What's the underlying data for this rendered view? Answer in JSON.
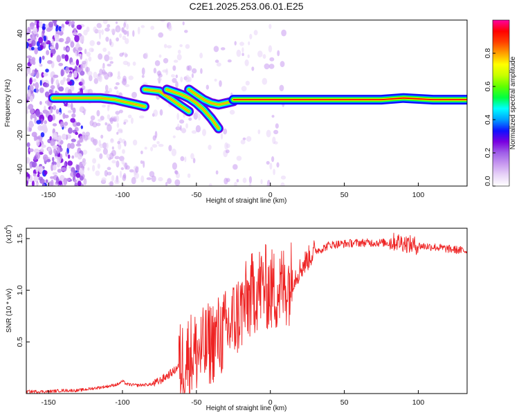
{
  "title": "C2E1.2025.253.06.01.E25",
  "colors": {
    "signal_line": "#ee2222",
    "axis": "#000000"
  },
  "chart_data": [
    {
      "type": "heatmap",
      "xlabel": "Height of straight line (km)",
      "ylabel": "Frequency (Hz)",
      "xlim": [
        -165,
        133
      ],
      "ylim": [
        -50,
        48
      ],
      "xticks": [
        -150,
        -100,
        -50,
        0,
        50,
        100
      ],
      "yticks": [
        -40,
        -20,
        0,
        20,
        40
      ],
      "colorbar": {
        "label": "Normalized spectral amplitude",
        "range": [
          0,
          1
        ],
        "ticks": [
          "0.0",
          "0.2",
          "0.4",
          "0.6",
          "0.8"
        ],
        "tick_values": [
          0.0,
          0.2,
          0.4,
          0.6,
          0.8
        ],
        "colormap": [
          "#ffffff",
          "#e8d4f8",
          "#c89af0",
          "#a060e8",
          "#7a00e0",
          "#1010ff",
          "#00a0ff",
          "#00ffff",
          "#00ff40",
          "#60ff00",
          "#c8ff00",
          "#ffff00",
          "#ffa000",
          "#ff4000",
          "#ff0000",
          "#ff00a0"
        ]
      },
      "ridges": [
        {
          "x": [
            -147,
            -130,
            -115,
            -105,
            -100,
            -95,
            -90,
            -85
          ],
          "y": [
            2,
            2,
            2,
            1,
            0,
            -1,
            -2,
            -3
          ]
        },
        {
          "x": [
            -85,
            -75,
            -70,
            -65,
            -60,
            -55
          ],
          "y": [
            7,
            6,
            3,
            0,
            -3,
            -6
          ]
        },
        {
          "x": [
            -70,
            -60,
            -55,
            -50,
            -45,
            -40,
            -35
          ],
          "y": [
            7,
            4,
            2,
            -1,
            -5,
            -10,
            -16
          ]
        },
        {
          "x": [
            -55,
            -50,
            -45,
            -40,
            -35,
            -30,
            -25
          ],
          "y": [
            7,
            4,
            1,
            -1,
            -2,
            -1,
            0
          ]
        },
        {
          "x": [
            -25,
            -10,
            0,
            10,
            25,
            50,
            75,
            90,
            110,
            133
          ],
          "y": [
            1,
            1,
            1,
            1,
            1,
            1,
            1,
            2,
            1,
            1
          ]
        }
      ]
    },
    {
      "type": "line",
      "xlabel": "Height of straight line (km)",
      "ylabel": "SNR (10 * v/v)",
      "multiplier_label": "(x10",
      "multiplier_exp": "4",
      "xlim": [
        -165,
        133
      ],
      "ylim": [
        0,
        1.6
      ],
      "xticks": [
        -150,
        -100,
        -50,
        0,
        50,
        100
      ],
      "yticks": [
        0.5,
        1.0,
        1.5
      ],
      "ytick_labels": [
        "0.5",
        "1.0",
        "1.5"
      ],
      "series": [
        {
          "x": [
            -165,
            -150,
            -140,
            -130,
            -120,
            -110,
            -103,
            -100,
            -97,
            -90,
            -80,
            -75,
            -70,
            -65,
            -60,
            -55,
            -50,
            -45,
            -40,
            -35,
            -30,
            -25,
            -20,
            -15,
            -10,
            -5,
            0,
            5,
            10,
            15,
            20,
            25,
            30,
            35,
            40,
            50,
            60,
            70,
            80,
            85,
            90,
            95,
            100,
            110,
            120,
            133
          ],
          "y": [
            0.02,
            0.02,
            0.03,
            0.03,
            0.05,
            0.07,
            0.09,
            0.12,
            0.09,
            0.08,
            0.09,
            0.12,
            0.17,
            0.22,
            0.3,
            0.38,
            0.4,
            0.42,
            0.5,
            0.55,
            0.6,
            0.7,
            0.8,
            0.9,
            1.0,
            1.05,
            1.0,
            1.0,
            1.05,
            1.1,
            1.2,
            1.3,
            1.38,
            1.4,
            1.44,
            1.45,
            1.46,
            1.46,
            1.46,
            1.47,
            1.46,
            1.44,
            1.43,
            1.42,
            1.4,
            1.38
          ]
        }
      ]
    }
  ]
}
